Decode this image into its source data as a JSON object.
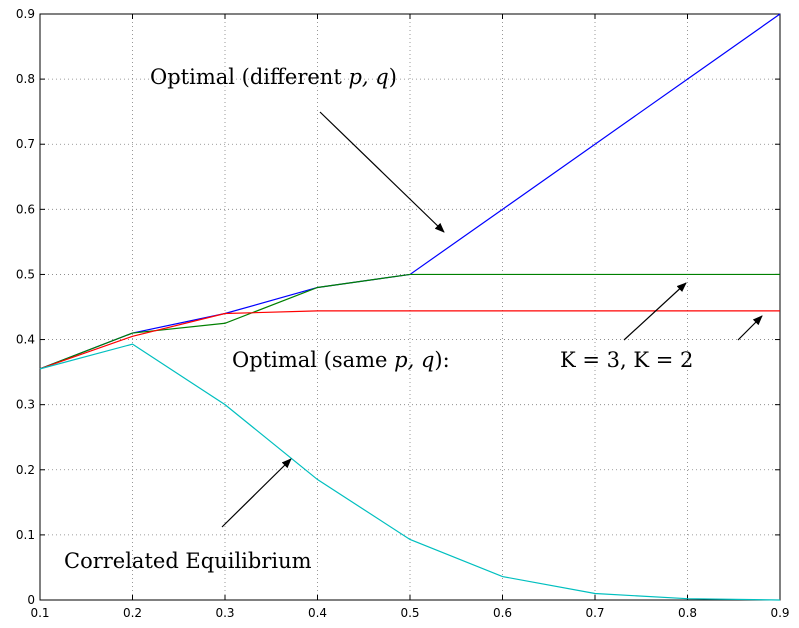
{
  "chart_data": {
    "type": "line",
    "title": "",
    "xlabel": "",
    "ylabel": "",
    "xlim": [
      0.1,
      0.9
    ],
    "ylim": [
      0,
      0.9
    ],
    "grid": true,
    "x_ticks": [
      "0.1",
      "0.2",
      "0.3",
      "0.4",
      "0.5",
      "0.6",
      "0.7",
      "0.8",
      "0.9"
    ],
    "y_ticks": [
      "0",
      "0.1",
      "0.2",
      "0.3",
      "0.4",
      "0.5",
      "0.6",
      "0.7",
      "0.8",
      "0.9"
    ],
    "x": [
      0.1,
      0.2,
      0.3,
      0.4,
      0.5,
      0.6,
      0.7,
      0.8,
      0.9
    ],
    "series": [
      {
        "color": "#0000ff",
        "values": [
          0.355,
          0.41,
          0.44,
          0.48,
          0.5,
          0.6,
          0.7,
          0.8,
          0.9
        ]
      },
      {
        "color": "#008000",
        "values": [
          0.355,
          0.41,
          0.425,
          0.48,
          0.5,
          0.5,
          0.5,
          0.5,
          0.5
        ]
      },
      {
        "color": "#ff0000",
        "values": [
          0.355,
          0.405,
          0.44,
          0.444,
          0.444,
          0.444,
          0.444,
          0.444,
          0.444
        ]
      },
      {
        "color": "#00bfbf",
        "values": [
          0.355,
          0.393,
          0.3,
          0.185,
          0.093,
          0.036,
          0.01,
          0.002,
          0.0
        ]
      }
    ],
    "annotations": [
      {
        "id": "opt-diff",
        "prefix": "Optimal (different ",
        "math": "p, q",
        "suffix": ")"
      },
      {
        "id": "opt-same",
        "prefix": "Optimal (same ",
        "math": "p, q",
        "suffix": "):"
      },
      {
        "id": "k-label",
        "math": "K = 3, K = 2"
      },
      {
        "id": "corr-eq",
        "prefix": "Correlated Equilibrium"
      }
    ]
  }
}
